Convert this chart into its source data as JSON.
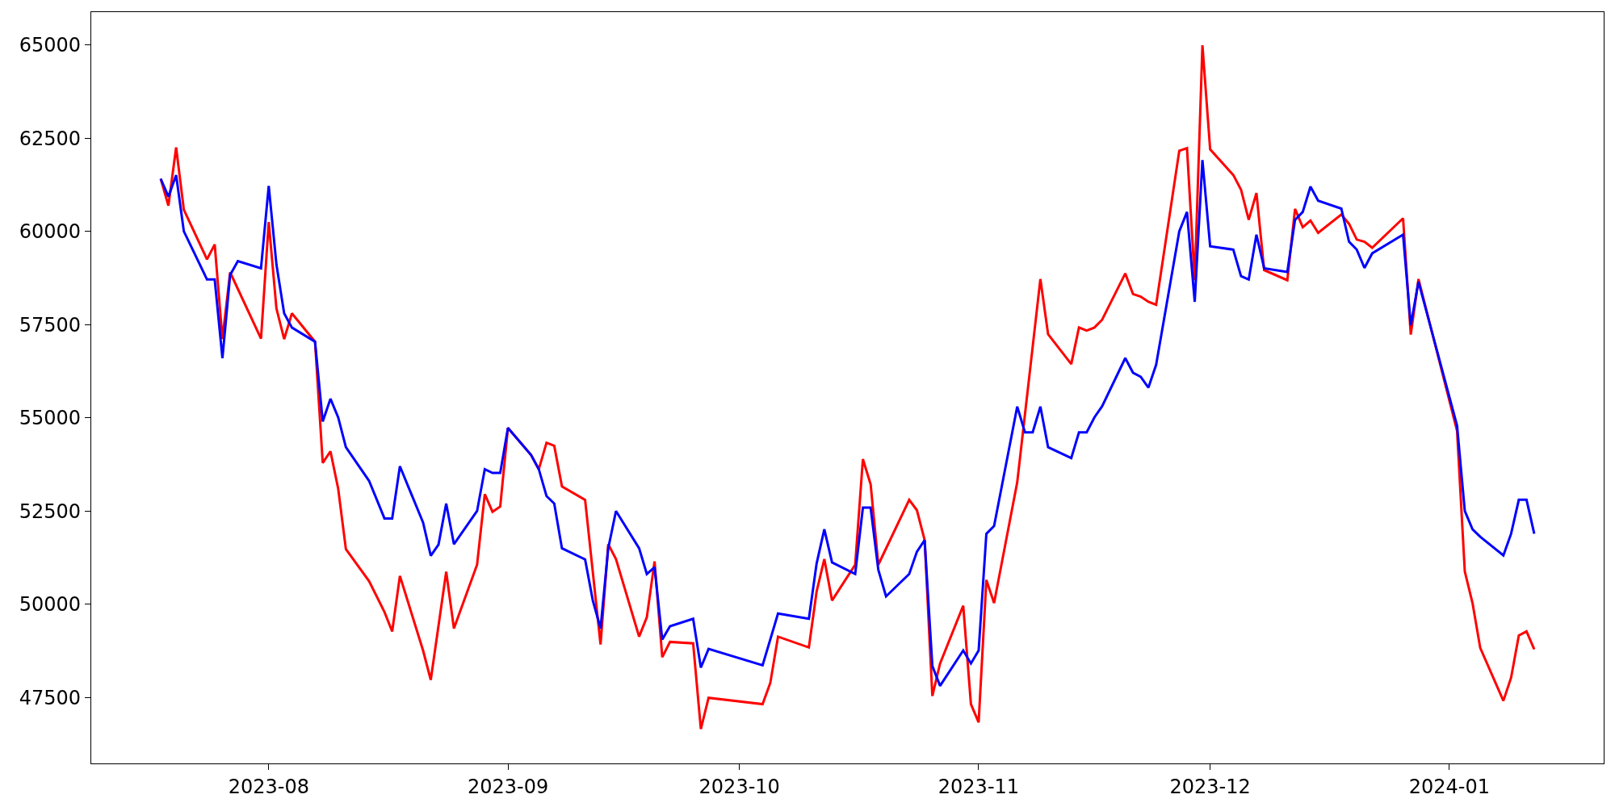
{
  "chart_data": {
    "type": "line",
    "series": [
      {
        "color": "#ff0000",
        "x": [
          "2023-07-18",
          "2023-07-19",
          "2023-07-20",
          "2023-07-21",
          "2023-07-24",
          "2023-07-25",
          "2023-07-26",
          "2023-07-27",
          "2023-07-31",
          "2023-08-01",
          "2023-08-02",
          "2023-08-03",
          "2023-08-04",
          "2023-08-07",
          "2023-08-08",
          "2023-08-09",
          "2023-08-10",
          "2023-08-11",
          "2023-08-14",
          "2023-08-16",
          "2023-08-17",
          "2023-08-18",
          "2023-08-21",
          "2023-08-22",
          "2023-08-24",
          "2023-08-25",
          "2023-08-28",
          "2023-08-29",
          "2023-08-30",
          "2023-08-31",
          "2023-09-01",
          "2023-09-04",
          "2023-09-05",
          "2023-09-06",
          "2023-09-07",
          "2023-09-08",
          "2023-09-11",
          "2023-09-13",
          "2023-09-14",
          "2023-09-15",
          "2023-09-18",
          "2023-09-19",
          "2023-09-20",
          "2023-09-21",
          "2023-09-22",
          "2023-09-25",
          "2023-09-26",
          "2023-09-27",
          "2023-10-04",
          "2023-10-05",
          "2023-10-06",
          "2023-10-10",
          "2023-10-11",
          "2023-10-12",
          "2023-10-13",
          "2023-10-16",
          "2023-10-17",
          "2023-10-18",
          "2023-10-19",
          "2023-10-23",
          "2023-10-24",
          "2023-10-25",
          "2023-10-26",
          "2023-10-27",
          "2023-10-30",
          "2023-10-31",
          "2023-11-01",
          "2023-11-02",
          "2023-11-03",
          "2023-11-06",
          "2023-11-09",
          "2023-11-10",
          "2023-11-13",
          "2023-11-14",
          "2023-11-15",
          "2023-11-16",
          "2023-11-17",
          "2023-11-20",
          "2023-11-21",
          "2023-11-22",
          "2023-11-23",
          "2023-11-24",
          "2023-11-27",
          "2023-11-28",
          "2023-11-29",
          "2023-11-30",
          "2023-12-01",
          "2023-12-04",
          "2023-12-05",
          "2023-12-06",
          "2023-12-07",
          "2023-12-08",
          "2023-12-11",
          "2023-12-12",
          "2023-12-13",
          "2023-12-14",
          "2023-12-15",
          "2023-12-18",
          "2023-12-19",
          "2023-12-20",
          "2023-12-21",
          "2023-12-22",
          "2023-12-26",
          "2023-12-27",
          "2023-12-28",
          "2024-01-02",
          "2024-01-03",
          "2024-01-04",
          "2024-01-05",
          "2024-01-08",
          "2024-01-09",
          "2024-01-10",
          "2024-01-11",
          "2024-01-12"
        ],
        "values": [
          61410,
          60690,
          62250,
          60580,
          59250,
          59650,
          57110,
          58900,
          57120,
          60250,
          57930,
          57110,
          57800,
          57040,
          53790,
          54100,
          53100,
          51480,
          50620,
          49790,
          49270,
          50760,
          48760,
          47970,
          50870,
          49350,
          51060,
          52950,
          52480,
          52620,
          54730,
          54000,
          53620,
          54330,
          54250,
          53160,
          52800,
          48920,
          51610,
          51210,
          49130,
          49650,
          51150,
          48580,
          48990,
          48950,
          46650,
          47490,
          47320,
          47890,
          49130,
          48840,
          50340,
          51210,
          50100,
          51060,
          53890,
          53220,
          51060,
          52800,
          52520,
          51720,
          47540,
          48410,
          49960,
          47320,
          46830,
          50650,
          50030,
          53270,
          58720,
          57240,
          56440,
          57420,
          57340,
          57420,
          57630,
          58870,
          58320,
          58250,
          58110,
          58030,
          62160,
          62230,
          58690,
          64990,
          62200,
          61510,
          61120,
          60310,
          61030,
          58960,
          58690,
          60600,
          60110,
          60290,
          59960,
          60450,
          60200,
          59780,
          59720,
          59560,
          60350,
          57230,
          58720,
          54650,
          50880,
          50030,
          48830,
          47410,
          48030,
          49160,
          49270,
          48790
        ]
      },
      {
        "color": "#0000ff",
        "x": [
          "2023-07-18",
          "2023-07-19",
          "2023-07-20",
          "2023-07-21",
          "2023-07-24",
          "2023-07-25",
          "2023-07-26",
          "2023-07-27",
          "2023-07-28",
          "2023-07-31",
          "2023-08-01",
          "2023-08-02",
          "2023-08-03",
          "2023-08-04",
          "2023-08-07",
          "2023-08-08",
          "2023-08-09",
          "2023-08-10",
          "2023-08-11",
          "2023-08-14",
          "2023-08-16",
          "2023-08-17",
          "2023-08-18",
          "2023-08-21",
          "2023-08-22",
          "2023-08-23",
          "2023-08-24",
          "2023-08-25",
          "2023-08-28",
          "2023-08-29",
          "2023-08-30",
          "2023-08-31",
          "2023-09-01",
          "2023-09-04",
          "2023-09-05",
          "2023-09-06",
          "2023-09-07",
          "2023-09-08",
          "2023-09-11",
          "2023-09-12",
          "2023-09-13",
          "2023-09-14",
          "2023-09-15",
          "2023-09-18",
          "2023-09-19",
          "2023-09-20",
          "2023-09-21",
          "2023-09-22",
          "2023-09-25",
          "2023-09-26",
          "2023-09-27",
          "2023-10-04",
          "2023-10-06",
          "2023-10-10",
          "2023-10-11",
          "2023-10-12",
          "2023-10-13",
          "2023-10-16",
          "2023-10-17",
          "2023-10-18",
          "2023-10-19",
          "2023-10-20",
          "2023-10-23",
          "2023-10-24",
          "2023-10-25",
          "2023-10-26",
          "2023-10-27",
          "2023-10-30",
          "2023-10-31",
          "2023-11-01",
          "2023-11-02",
          "2023-11-03",
          "2023-11-06",
          "2023-11-07",
          "2023-11-08",
          "2023-11-09",
          "2023-11-10",
          "2023-11-13",
          "2023-11-14",
          "2023-11-15",
          "2023-11-16",
          "2023-11-17",
          "2023-11-20",
          "2023-11-21",
          "2023-11-22",
          "2023-11-23",
          "2023-11-24",
          "2023-11-27",
          "2023-11-28",
          "2023-11-29",
          "2023-11-30",
          "2023-12-01",
          "2023-12-04",
          "2023-12-05",
          "2023-12-06",
          "2023-12-07",
          "2023-12-08",
          "2023-12-11",
          "2023-12-12",
          "2023-12-13",
          "2023-12-14",
          "2023-12-15",
          "2023-12-18",
          "2023-12-19",
          "2023-12-20",
          "2023-12-21",
          "2023-12-22",
          "2023-12-26",
          "2023-12-27",
          "2023-12-28",
          "2024-01-02",
          "2024-01-03",
          "2024-01-04",
          "2024-01-05",
          "2024-01-08",
          "2024-01-09",
          "2024-01-10",
          "2024-01-11",
          "2024-01-12"
        ],
        "values": [
          61410,
          60930,
          61510,
          60000,
          58710,
          58710,
          56600,
          58830,
          59200,
          59010,
          61220,
          59110,
          57800,
          57420,
          57040,
          54900,
          55510,
          55010,
          54210,
          53310,
          52300,
          52300,
          53700,
          52190,
          51300,
          51600,
          52700,
          51610,
          52500,
          53620,
          53520,
          53520,
          54730,
          54000,
          53620,
          52900,
          52700,
          51500,
          51200,
          50100,
          49350,
          51500,
          52500,
          51500,
          50810,
          50990,
          49050,
          49410,
          49610,
          48300,
          48800,
          48360,
          49750,
          49610,
          51090,
          52010,
          51120,
          50810,
          52590,
          52590,
          50920,
          50210,
          50810,
          51410,
          51720,
          48340,
          47810,
          48760,
          48410,
          48760,
          51890,
          52100,
          55300,
          54610,
          54610,
          55300,
          54210,
          53920,
          54610,
          54610,
          55010,
          55310,
          56600,
          56210,
          56100,
          55810,
          56420,
          60000,
          60520,
          58110,
          61910,
          59600,
          59510,
          58800,
          58710,
          59910,
          59010,
          58910,
          60310,
          60520,
          61200,
          60820,
          60610,
          59720,
          59510,
          59020,
          59410,
          59910,
          57480,
          58650,
          54790,
          52500,
          52010,
          51810,
          51310,
          51890,
          52800,
          52800,
          51890
        ]
      }
    ],
    "xlim": [
      "2023-07-09",
      "2024-01-21"
    ],
    "xticks": [
      {
        "value": "2023-08-01",
        "label": "2023-08"
      },
      {
        "value": "2023-09-01",
        "label": "2023-09"
      },
      {
        "value": "2023-10-01",
        "label": "2023-10"
      },
      {
        "value": "2023-11-01",
        "label": "2023-11"
      },
      {
        "value": "2023-12-01",
        "label": "2023-12"
      },
      {
        "value": "2024-01-01",
        "label": "2024-01"
      }
    ],
    "ylim": [
      45730,
      65880
    ],
    "yticks": [
      47500,
      50000,
      52500,
      55000,
      57500,
      60000,
      62500,
      65000
    ],
    "marker": "none",
    "line_style": "solid"
  }
}
